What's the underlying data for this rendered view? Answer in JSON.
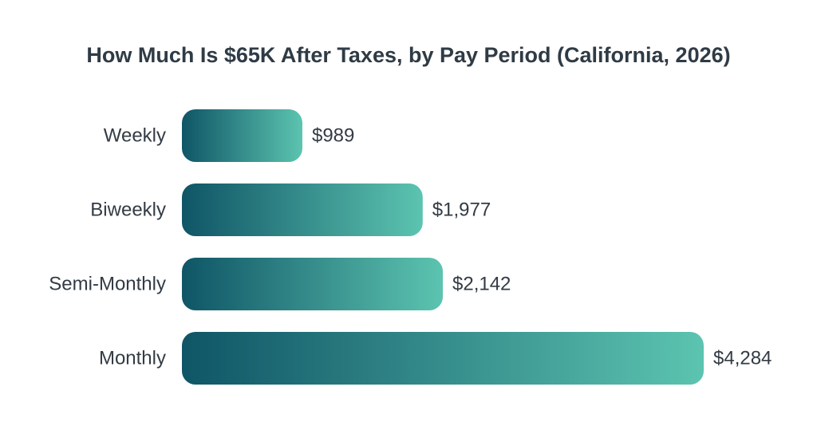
{
  "chart_data": {
    "type": "bar",
    "orientation": "horizontal",
    "title": "How Much Is $65K After Taxes, by Pay Period (California, 2026)",
    "categories": [
      "Weekly",
      "Biweekly",
      "Semi-Monthly",
      "Monthly"
    ],
    "values": [
      989,
      1977,
      2142,
      4284
    ],
    "value_labels": [
      "$989",
      "$1,977",
      "$2,142",
      "$4,284"
    ],
    "xlabel": "",
    "ylabel": "",
    "grid": false,
    "legend": "none",
    "colors": {
      "bar_gradient_start": "#0f5566",
      "bar_gradient_end": "#5cc4b0",
      "title": "#2f3b45",
      "text": "#333b44"
    }
  }
}
